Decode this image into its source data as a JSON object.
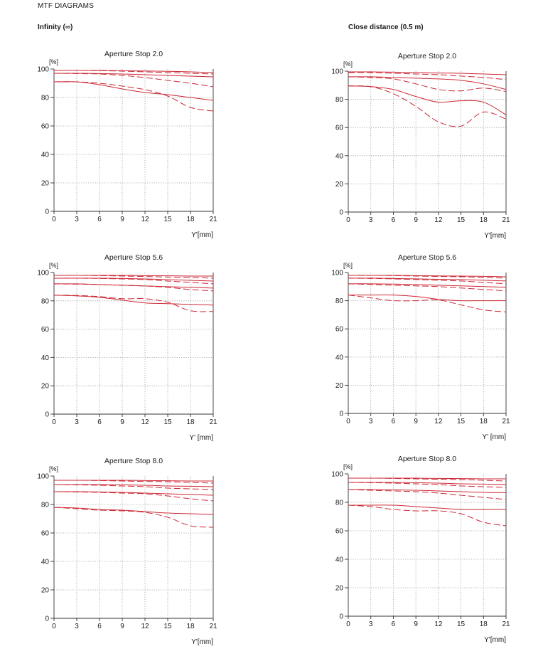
{
  "page": {
    "title": "MTF DIAGRAMS",
    "left_heading": "Infinity (∞)",
    "right_heading": "Close distance (0.5 m)"
  },
  "style": {
    "curve_color": "#cc2936",
    "grid_color": "#9a9a9a",
    "axis_color": "#333333"
  },
  "chart_data": [
    {
      "type": "line",
      "title": "Aperture Stop 2.0",
      "ylabel": "[%]",
      "xlabel": "Y'[mm]",
      "xlim": [
        0,
        21
      ],
      "ylim": [
        0,
        100
      ],
      "xticks": [
        0,
        3,
        6,
        9,
        12,
        15,
        18,
        21
      ],
      "yticks": [
        0,
        20,
        40,
        60,
        80,
        100
      ],
      "grid": true,
      "series": [
        {
          "style": "solid",
          "x": [
            0,
            3,
            6,
            9,
            12,
            15,
            18,
            21
          ],
          "y": [
            99,
            99,
            99,
            98.8,
            98.6,
            98.4,
            98,
            97.5
          ]
        },
        {
          "style": "dashed",
          "x": [
            0,
            3,
            6,
            9,
            12,
            15,
            18,
            21
          ],
          "y": [
            99,
            99,
            98.8,
            98.5,
            98,
            97.5,
            97,
            96.5
          ]
        },
        {
          "style": "solid",
          "x": [
            0,
            3,
            6,
            9,
            12,
            15,
            18,
            21
          ],
          "y": [
            97,
            97,
            96.8,
            96.5,
            96,
            95.5,
            95,
            94.5
          ]
        },
        {
          "style": "dashed",
          "x": [
            0,
            3,
            6,
            9,
            12,
            15,
            18,
            21
          ],
          "y": [
            97,
            96.8,
            96.5,
            95.5,
            94,
            92,
            90,
            87.5
          ]
        },
        {
          "style": "solid",
          "x": [
            0,
            3,
            6,
            9,
            12,
            15,
            18,
            21
          ],
          "y": [
            91,
            91,
            89,
            86,
            83.5,
            82,
            80,
            78
          ]
        },
        {
          "style": "dashed",
          "x": [
            0,
            3,
            6,
            9,
            12,
            15,
            18,
            21
          ],
          "y": [
            91,
            91,
            90,
            88,
            85.5,
            81,
            73,
            70.5
          ]
        }
      ]
    },
    {
      "type": "line",
      "title": "Aperture Stop 2.0",
      "ylabel": "[%]",
      "xlabel": "Y'[mm]",
      "xlim": [
        0,
        21
      ],
      "ylim": [
        0,
        100
      ],
      "xticks": [
        0,
        3,
        6,
        9,
        12,
        15,
        18,
        21
      ],
      "yticks": [
        0,
        20,
        40,
        60,
        80,
        100
      ],
      "grid": true,
      "series": [
        {
          "style": "solid",
          "x": [
            0,
            3,
            6,
            9,
            12,
            15,
            18,
            21
          ],
          "y": [
            99.5,
            99.5,
            99.3,
            99,
            98.7,
            98.5,
            98,
            97.5
          ]
        },
        {
          "style": "dashed",
          "x": [
            0,
            3,
            6,
            9,
            12,
            15,
            18,
            21
          ],
          "y": [
            99,
            99,
            98.5,
            98,
            97.5,
            96.5,
            95.5,
            94
          ]
        },
        {
          "style": "solid",
          "x": [
            0,
            3,
            6,
            9,
            12,
            15,
            18,
            21
          ],
          "y": [
            96,
            96,
            95.5,
            95,
            94.5,
            93.5,
            91,
            87
          ]
        },
        {
          "style": "dashed",
          "x": [
            0,
            3,
            6,
            9,
            12,
            15,
            18,
            21
          ],
          "y": [
            96,
            95.5,
            94.5,
            91,
            87,
            86,
            88,
            85.5
          ]
        },
        {
          "style": "solid",
          "x": [
            0,
            3,
            6,
            9,
            12,
            15,
            18,
            21
          ],
          "y": [
            89.5,
            89,
            87,
            82,
            78,
            79,
            78,
            69
          ]
        },
        {
          "style": "dashed",
          "x": [
            0,
            3,
            6,
            9,
            12,
            15,
            18,
            21
          ],
          "y": [
            89.5,
            89,
            84,
            75,
            64,
            61,
            71,
            66
          ]
        }
      ]
    },
    {
      "type": "line",
      "title": "Aperture Stop 5.6",
      "ylabel": "[%]",
      "xlabel": "Y' [mm]",
      "xlim": [
        0,
        21
      ],
      "ylim": [
        0,
        100
      ],
      "xticks": [
        0,
        3,
        6,
        9,
        12,
        15,
        18,
        21
      ],
      "yticks": [
        0,
        20,
        40,
        60,
        80,
        100
      ],
      "grid": true,
      "series": [
        {
          "style": "solid",
          "x": [
            0,
            3,
            6,
            9,
            12,
            15,
            18,
            21
          ],
          "y": [
            98,
            98,
            98,
            98,
            97.8,
            97.7,
            97.5,
            97.5
          ]
        },
        {
          "style": "dashed",
          "x": [
            0,
            3,
            6,
            9,
            12,
            15,
            18,
            21
          ],
          "y": [
            98,
            98,
            97.8,
            97.5,
            97.2,
            96.8,
            96.5,
            96
          ]
        },
        {
          "style": "solid",
          "x": [
            0,
            3,
            6,
            9,
            12,
            15,
            18,
            21
          ],
          "y": [
            96,
            96,
            96,
            95.8,
            95.5,
            95,
            94.5,
            94
          ]
        },
        {
          "style": "dashed",
          "x": [
            0,
            3,
            6,
            9,
            12,
            15,
            18,
            21
          ],
          "y": [
            96,
            96,
            95.8,
            95.5,
            95,
            94,
            93,
            92
          ]
        },
        {
          "style": "solid",
          "x": [
            0,
            3,
            6,
            9,
            12,
            15,
            18,
            21
          ],
          "y": [
            92,
            92,
            91.5,
            91,
            90.5,
            90,
            89.5,
            89
          ]
        },
        {
          "style": "dashed",
          "x": [
            0,
            3,
            6,
            9,
            12,
            15,
            18,
            21
          ],
          "y": [
            92,
            91.8,
            91.5,
            91,
            90.5,
            89.5,
            88,
            87
          ]
        },
        {
          "style": "solid",
          "x": [
            0,
            3,
            6,
            9,
            12,
            15,
            18,
            21
          ],
          "y": [
            84,
            83.5,
            82.5,
            80.5,
            78.5,
            78,
            77.5,
            77
          ]
        },
        {
          "style": "dashed",
          "x": [
            0,
            3,
            6,
            9,
            12,
            15,
            18,
            21
          ],
          "y": [
            84,
            83.8,
            83,
            81.5,
            81.5,
            79,
            73,
            72.5
          ]
        }
      ]
    },
    {
      "type": "line",
      "title": "Aperture Stop 5.6",
      "ylabel": "[%]",
      "xlabel": "Y' [mm]",
      "xlim": [
        0,
        21
      ],
      "ylim": [
        0,
        100
      ],
      "xticks": [
        0,
        3,
        6,
        9,
        12,
        15,
        18,
        21
      ],
      "yticks": [
        0,
        20,
        40,
        60,
        80,
        100
      ],
      "grid": true,
      "series": [
        {
          "style": "solid",
          "x": [
            0,
            3,
            6,
            9,
            12,
            15,
            18,
            21
          ],
          "y": [
            98,
            98,
            98,
            97.8,
            97.6,
            97.5,
            97.3,
            97
          ]
        },
        {
          "style": "dashed",
          "x": [
            0,
            3,
            6,
            9,
            12,
            15,
            18,
            21
          ],
          "y": [
            98,
            98,
            97.8,
            97.5,
            97.2,
            97,
            96.5,
            96
          ]
        },
        {
          "style": "solid",
          "x": [
            0,
            3,
            6,
            9,
            12,
            15,
            18,
            21
          ],
          "y": [
            96,
            96,
            95.8,
            95.5,
            95.2,
            95,
            94.5,
            94
          ]
        },
        {
          "style": "dashed",
          "x": [
            0,
            3,
            6,
            9,
            12,
            15,
            18,
            21
          ],
          "y": [
            96,
            95.8,
            95.5,
            95,
            94.5,
            94,
            93,
            92
          ]
        },
        {
          "style": "solid",
          "x": [
            0,
            3,
            6,
            9,
            12,
            15,
            18,
            21
          ],
          "y": [
            92,
            92,
            91.8,
            91.5,
            91,
            90.5,
            90,
            89.5
          ]
        },
        {
          "style": "dashed",
          "x": [
            0,
            3,
            6,
            9,
            12,
            15,
            18,
            21
          ],
          "y": [
            92,
            91.5,
            91,
            90.5,
            90,
            89,
            88,
            87
          ]
        },
        {
          "style": "solid",
          "x": [
            0,
            3,
            6,
            9,
            12,
            15,
            18,
            21
          ],
          "y": [
            84,
            84,
            84,
            83,
            81,
            80,
            80,
            80
          ]
        },
        {
          "style": "dashed",
          "x": [
            0,
            3,
            6,
            9,
            12,
            15,
            18,
            21
          ],
          "y": [
            84,
            82,
            80,
            80,
            80.5,
            77,
            73.5,
            72
          ]
        }
      ]
    },
    {
      "type": "line",
      "title": "Aperture Stop 8.0",
      "ylabel": "[%]",
      "xlabel": "Y'[mm]",
      "xlim": [
        0,
        21
      ],
      "ylim": [
        0,
        100
      ],
      "xticks": [
        0,
        3,
        6,
        9,
        12,
        15,
        18,
        21
      ],
      "yticks": [
        0,
        20,
        40,
        60,
        80,
        100
      ],
      "grid": true,
      "series": [
        {
          "style": "solid",
          "x": [
            0,
            3,
            6,
            9,
            12,
            15,
            18,
            21
          ],
          "y": [
            97,
            97,
            97,
            97,
            96.8,
            96.7,
            96.5,
            96.5
          ]
        },
        {
          "style": "dashed",
          "x": [
            0,
            3,
            6,
            9,
            12,
            15,
            18,
            21
          ],
          "y": [
            97,
            97,
            96.8,
            96.5,
            96.2,
            96,
            95.5,
            95
          ]
        },
        {
          "style": "solid",
          "x": [
            0,
            3,
            6,
            9,
            12,
            15,
            18,
            21
          ],
          "y": [
            94,
            94,
            94,
            93.8,
            93.5,
            93,
            92.8,
            92.5
          ]
        },
        {
          "style": "dashed",
          "x": [
            0,
            3,
            6,
            9,
            12,
            15,
            18,
            21
          ],
          "y": [
            94,
            93.8,
            93.5,
            93,
            92.5,
            91.5,
            91,
            90.5
          ]
        },
        {
          "style": "solid",
          "x": [
            0,
            3,
            6,
            9,
            12,
            15,
            18,
            21
          ],
          "y": [
            89,
            89,
            88.8,
            88.5,
            88,
            87.5,
            87,
            86.5
          ]
        },
        {
          "style": "dashed",
          "x": [
            0,
            3,
            6,
            9,
            12,
            15,
            18,
            21
          ],
          "y": [
            89,
            88.8,
            88.5,
            88,
            87.5,
            86,
            84,
            82.5
          ]
        },
        {
          "style": "solid",
          "x": [
            0,
            3,
            6,
            9,
            12,
            15,
            18,
            21
          ],
          "y": [
            78,
            77.5,
            76.5,
            76,
            75,
            74,
            73.5,
            73
          ]
        },
        {
          "style": "dashed",
          "x": [
            0,
            3,
            6,
            9,
            12,
            15,
            18,
            21
          ],
          "y": [
            78,
            77,
            76,
            75.5,
            74.5,
            71,
            65,
            64
          ]
        }
      ]
    },
    {
      "type": "line",
      "title": "Aperture Stop 8.0",
      "ylabel": "[%]",
      "xlabel": "Y'[mm]",
      "xlim": [
        0,
        21
      ],
      "ylim": [
        0,
        100
      ],
      "xticks": [
        0,
        3,
        6,
        9,
        12,
        15,
        18,
        21
      ],
      "yticks": [
        0,
        20,
        40,
        60,
        80,
        100
      ],
      "grid": true,
      "series": [
        {
          "style": "solid",
          "x": [
            0,
            3,
            6,
            9,
            12,
            15,
            18,
            21
          ],
          "y": [
            97,
            97,
            97,
            97,
            96.8,
            96.7,
            96.5,
            96.5
          ]
        },
        {
          "style": "dashed",
          "x": [
            0,
            3,
            6,
            9,
            12,
            15,
            18,
            21
          ],
          "y": [
            97,
            97,
            96.8,
            96.5,
            96.2,
            96,
            95.5,
            95
          ]
        },
        {
          "style": "solid",
          "x": [
            0,
            3,
            6,
            9,
            12,
            15,
            18,
            21
          ],
          "y": [
            94,
            94,
            94,
            93.8,
            93.5,
            93,
            92.8,
            92.5
          ]
        },
        {
          "style": "dashed",
          "x": [
            0,
            3,
            6,
            9,
            12,
            15,
            18,
            21
          ],
          "y": [
            94,
            93.8,
            93.5,
            93,
            92.5,
            91.5,
            91,
            90.5
          ]
        },
        {
          "style": "solid",
          "x": [
            0,
            3,
            6,
            9,
            12,
            15,
            18,
            21
          ],
          "y": [
            89,
            89,
            88.8,
            88.5,
            88,
            87.5,
            87,
            86.8
          ]
        },
        {
          "style": "dashed",
          "x": [
            0,
            3,
            6,
            9,
            12,
            15,
            18,
            21
          ],
          "y": [
            89,
            88.5,
            88,
            87.5,
            86.5,
            85,
            83.5,
            82
          ]
        },
        {
          "style": "solid",
          "x": [
            0,
            3,
            6,
            9,
            12,
            15,
            18,
            21
          ],
          "y": [
            78,
            78,
            78,
            77,
            76,
            75,
            75,
            75
          ]
        },
        {
          "style": "dashed",
          "x": [
            0,
            3,
            6,
            9,
            12,
            15,
            18,
            21
          ],
          "y": [
            78,
            77,
            75,
            74,
            74,
            72,
            66,
            63.5
          ]
        }
      ]
    }
  ]
}
